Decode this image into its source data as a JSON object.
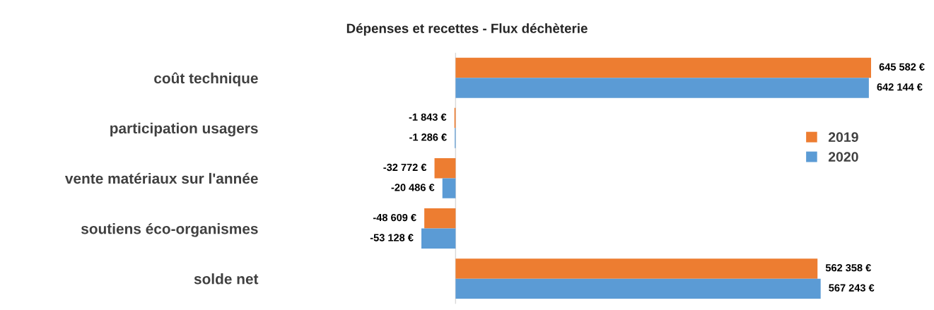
{
  "chart_data": {
    "type": "bar",
    "orientation": "horizontal",
    "title": "Dépenses et recettes - Flux déchèterie",
    "categories": [
      "coût technique",
      "participation usagers",
      "vente matériaux sur l'année",
      "soutiens éco-organismes",
      "solde net"
    ],
    "series": [
      {
        "name": "2019",
        "color": "#ed7d31",
        "values": [
          645582,
          -1843,
          -32772,
          -48609,
          562358
        ],
        "value_labels": [
          "645 582 €",
          "-1 843 €",
          "-32 772 €",
          "-48 609 €",
          "562 358 €"
        ]
      },
      {
        "name": "2020",
        "color": "#5b9bd5",
        "values": [
          642144,
          -1286,
          -20486,
          -53128,
          567243
        ],
        "value_labels": [
          "642 144 €",
          "-1 286 €",
          "-20 486 €",
          "-53 128 €",
          "567 243 €"
        ]
      }
    ],
    "tick_labels": "y",
    "grid": false,
    "legend": "right"
  }
}
